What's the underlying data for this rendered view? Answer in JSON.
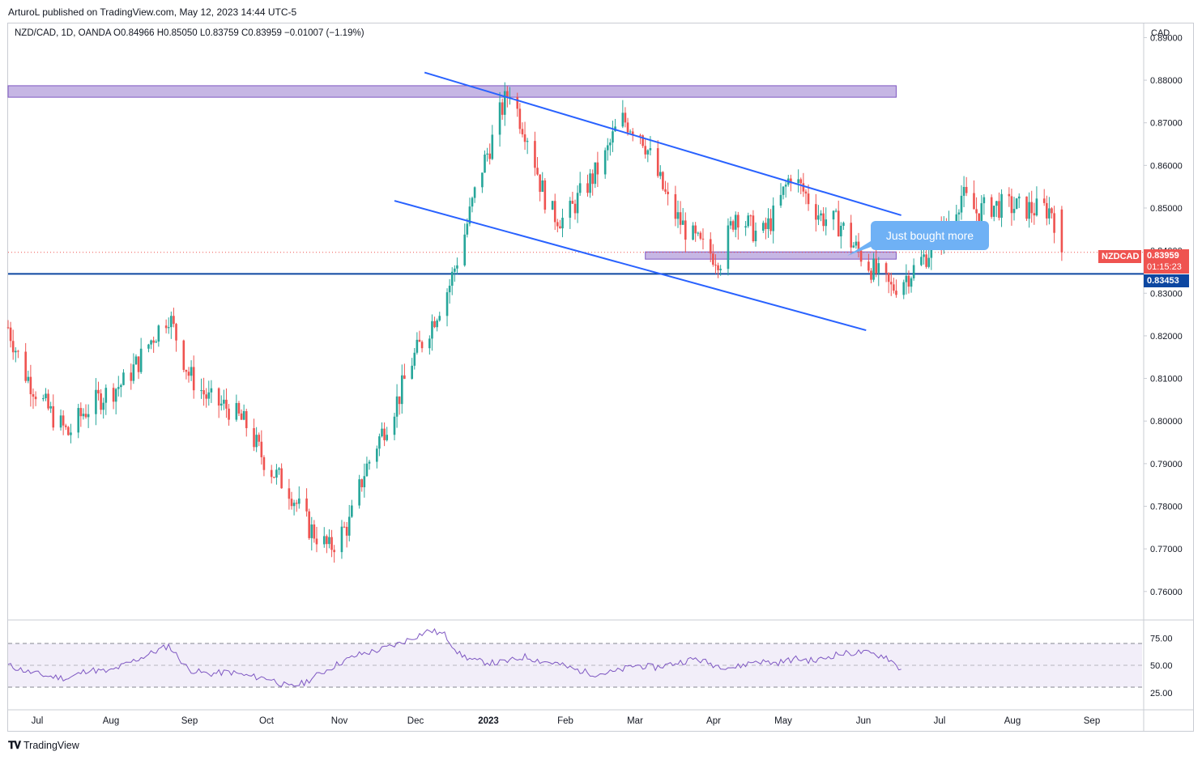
{
  "publisher": "ArturoL published on TradingView.com, May 12, 2023 14:44 UTC-5",
  "symbol_info": "NZD/CAD, 1D, OANDA  O0.84966  H0.85050  L0.83759  C0.83959  −0.01007 (−1.19%)",
  "currency": "CAD",
  "footer": {
    "brand": "TradingView",
    "logo": "TV-logo-icon"
  },
  "annotation": {
    "text": "Just bought more"
  },
  "price_labels": {
    "symbol": "NZDCAD",
    "last_price": "0.83959",
    "countdown": "01:15:23",
    "support_price": "0.83453"
  },
  "colors": {
    "up": "#26a69a",
    "down": "#ef5350",
    "trendline": "#2962ff",
    "zone_fill": "#b39ddb",
    "zone_border": "#7e57c2",
    "support": "#0d47a1",
    "rsi_line": "#7e57c2",
    "callout": "#6fb1f5",
    "last_price_badge": "#ef5350"
  },
  "chart_data": [
    {
      "type": "candlestick",
      "title": "NZD/CAD, 1D, OANDA",
      "ylabel": "CAD",
      "ylim": [
        0.7535,
        0.8935
      ],
      "y_ticks": [
        "0.89000",
        "0.88000",
        "0.87000",
        "0.86000",
        "0.85000",
        "0.84000",
        "0.83000",
        "0.82000",
        "0.81000",
        "0.80000",
        "0.79000",
        "0.78000",
        "0.77000",
        "0.76000"
      ],
      "x_ticks": [
        "Jul",
        "Aug",
        "Sep",
        "Oct",
        "Nov",
        "Dec",
        "2023",
        "Feb",
        "Mar",
        "Apr",
        "May",
        "Jun",
        "Jul",
        "Aug",
        "Sep"
      ],
      "x_range_days": [
        0,
        452
      ],
      "price_path_days": [
        0,
        6,
        12,
        18,
        24,
        30,
        38,
        46,
        52,
        58,
        64,
        72,
        80,
        88,
        95,
        101,
        104,
        112,
        120,
        128,
        136,
        142,
        148,
        152,
        156,
        160,
        168,
        176,
        182,
        188,
        193,
        196,
        200,
        204,
        208,
        212,
        216,
        222,
        228,
        234,
        238,
        244,
        252,
        258,
        264,
        270,
        276,
        284,
        290,
        300,
        306,
        312,
        318,
        324,
        332,
        336,
        344,
        352,
        360,
        366,
        370,
        374,
        380,
        386,
        392,
        400,
        408,
        413,
        416,
        420
      ],
      "price_path_close": [
        0.822,
        0.812,
        0.806,
        0.801,
        0.797,
        0.802,
        0.806,
        0.809,
        0.814,
        0.82,
        0.825,
        0.811,
        0.805,
        0.803,
        0.799,
        0.792,
        0.789,
        0.784,
        0.775,
        0.77,
        0.776,
        0.788,
        0.796,
        0.801,
        0.806,
        0.813,
        0.822,
        0.832,
        0.844,
        0.858,
        0.866,
        0.872,
        0.878,
        0.871,
        0.866,
        0.856,
        0.849,
        0.847,
        0.853,
        0.858,
        0.862,
        0.871,
        0.868,
        0.859,
        0.85,
        0.845,
        0.841,
        0.838,
        0.849,
        0.843,
        0.849,
        0.858,
        0.853,
        0.848,
        0.846,
        0.842,
        0.836,
        0.831,
        0.835,
        0.839,
        0.842,
        0.846,
        0.853,
        0.849,
        0.8505,
        0.8503,
        0.8497,
        0.8497,
        0.8496,
        0.8396
      ],
      "last": {
        "open": 0.84966,
        "high": 0.8505,
        "low": 0.83759,
        "close": 0.83959,
        "change": -0.01007,
        "change_pct": -1.19
      },
      "horizontal_levels": [
        0.83453
      ],
      "zones": [
        {
          "day_from": 0,
          "day_to": 354,
          "price_from": 0.876,
          "price_to": 0.8787
        },
        {
          "day_from": 254,
          "day_to": 354,
          "price_from": 0.838,
          "price_to": 0.8397
        }
      ],
      "trendlines": [
        {
          "from": {
            "day": 166,
            "price": 0.8818
          },
          "to": {
            "day": 356,
            "price": 0.8483
          }
        },
        {
          "from": {
            "day": 154,
            "price": 0.8517
          },
          "to": {
            "day": 342,
            "price": 0.8213
          }
        }
      ]
    },
    {
      "type": "line",
      "title": "RSI",
      "ylim": [
        10,
        90
      ],
      "y_ticks": [
        "75.00",
        "50.00",
        "25.00"
      ],
      "band": [
        30,
        70
      ],
      "mid": 50,
      "x_days": [
        0,
        8,
        16,
        24,
        32,
        40,
        48,
        56,
        64,
        72,
        80,
        88,
        96,
        104,
        112,
        118,
        124,
        132,
        140,
        148,
        156,
        162,
        168,
        174,
        180,
        186,
        194,
        200,
        206,
        212,
        218,
        226,
        234,
        242,
        250,
        258,
        266,
        274,
        282,
        290,
        298,
        306,
        314,
        322,
        330,
        340,
        350,
        356
      ],
      "values": [
        50,
        44,
        40,
        38,
        46,
        44,
        52,
        60,
        68,
        46,
        42,
        44,
        40,
        38,
        30,
        34,
        42,
        52,
        60,
        64,
        70,
        76,
        82,
        78,
        60,
        54,
        52,
        54,
        58,
        54,
        52,
        46,
        42,
        44,
        50,
        48,
        52,
        56,
        50,
        48,
        54,
        52,
        56,
        54,
        60,
        62,
        58,
        46
      ]
    }
  ]
}
